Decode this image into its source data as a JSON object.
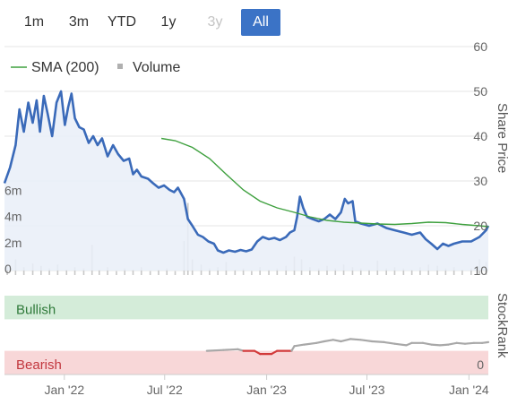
{
  "range_selector": {
    "buttons": [
      {
        "label": "1m",
        "state": "normal"
      },
      {
        "label": "3m",
        "state": "normal"
      },
      {
        "label": "YTD",
        "state": "normal"
      },
      {
        "label": "1y",
        "state": "normal"
      },
      {
        "label": "3y",
        "state": "disabled"
      },
      {
        "label": "All",
        "state": "active"
      }
    ]
  },
  "legend": {
    "sma_label": "SMA (200)",
    "volume_label": "Volume"
  },
  "colors": {
    "price": "#3a6ab9",
    "sma": "#3ea03e",
    "volume": "#c8c8c8",
    "area_fill": "#e9eef8",
    "bullish_band": "#d4ecd9",
    "bearish_band": "#f8d7d8",
    "bullish_text": "#2f7a3a",
    "bearish_text": "#c2373e",
    "stockrank_line": "#a8a8a8",
    "stockrank_bear": "#d23a3a",
    "active_button": "#3b73c6"
  },
  "chart_data": [
    {
      "type": "line",
      "ylabel": "Share Price",
      "right_ticks": [
        "60",
        "50",
        "40",
        "30",
        "20",
        "10"
      ],
      "ylim": [
        10,
        60
      ],
      "left_volume_ticks": [
        "6m",
        "4m",
        "2m",
        "0"
      ],
      "volume_ylim": [
        0,
        8
      ],
      "xlim": [
        "2021-09-15",
        "2024-02-05"
      ],
      "x_ticks": [
        {
          "label": "Jan '22",
          "date": "2022-01-01"
        },
        {
          "label": "Jul '22",
          "date": "2022-07-01"
        },
        {
          "label": "Jan '23",
          "date": "2023-01-01"
        },
        {
          "label": "Jul '23",
          "date": "2023-07-01"
        },
        {
          "label": "Jan '24",
          "date": "2024-01-01"
        }
      ],
      "price_series": {
        "name": "Share Price",
        "points": [
          [
            "2021-09-15",
            29.5
          ],
          [
            "2021-09-25",
            33.0
          ],
          [
            "2021-10-05",
            38.0
          ],
          [
            "2021-10-12",
            46.0
          ],
          [
            "2021-10-20",
            41.0
          ],
          [
            "2021-10-28",
            47.5
          ],
          [
            "2021-11-05",
            43.0
          ],
          [
            "2021-11-12",
            48.0
          ],
          [
            "2021-11-18",
            41.0
          ],
          [
            "2021-11-25",
            49.0
          ],
          [
            "2021-12-02",
            45.0
          ],
          [
            "2021-12-10",
            40.0
          ],
          [
            "2021-12-18",
            47.5
          ],
          [
            "2021-12-26",
            50.0
          ],
          [
            "2022-01-02",
            42.5
          ],
          [
            "2022-01-08",
            46.5
          ],
          [
            "2022-01-14",
            49.5
          ],
          [
            "2022-01-20",
            44.0
          ],
          [
            "2022-01-28",
            42.0
          ],
          [
            "2022-02-05",
            41.5
          ],
          [
            "2022-02-14",
            38.5
          ],
          [
            "2022-02-22",
            40.0
          ],
          [
            "2022-03-02",
            38.0
          ],
          [
            "2022-03-10",
            39.5
          ],
          [
            "2022-03-20",
            35.5
          ],
          [
            "2022-03-30",
            38.0
          ],
          [
            "2022-04-08",
            36.0
          ],
          [
            "2022-04-18",
            34.5
          ],
          [
            "2022-04-28",
            35.0
          ],
          [
            "2022-05-05",
            31.5
          ],
          [
            "2022-05-12",
            32.5
          ],
          [
            "2022-05-20",
            31.0
          ],
          [
            "2022-06-01",
            30.5
          ],
          [
            "2022-06-10",
            29.5
          ],
          [
            "2022-06-20",
            28.5
          ],
          [
            "2022-06-30",
            29.0
          ],
          [
            "2022-07-10",
            28.0
          ],
          [
            "2022-07-18",
            27.5
          ],
          [
            "2022-07-25",
            28.5
          ],
          [
            "2022-08-05",
            26.0
          ],
          [
            "2022-08-12",
            21.5
          ],
          [
            "2022-08-20",
            20.0
          ],
          [
            "2022-08-30",
            18.0
          ],
          [
            "2022-09-08",
            17.5
          ],
          [
            "2022-09-18",
            16.5
          ],
          [
            "2022-09-28",
            16.0
          ],
          [
            "2022-10-05",
            14.5
          ],
          [
            "2022-10-15",
            14.0
          ],
          [
            "2022-10-25",
            14.5
          ],
          [
            "2022-11-05",
            14.2
          ],
          [
            "2022-11-15",
            14.6
          ],
          [
            "2022-11-25",
            14.3
          ],
          [
            "2022-12-05",
            14.7
          ],
          [
            "2022-12-15",
            16.5
          ],
          [
            "2022-12-25",
            17.5
          ],
          [
            "2023-01-05",
            17.0
          ],
          [
            "2023-01-15",
            17.3
          ],
          [
            "2023-01-25",
            16.8
          ],
          [
            "2023-02-05",
            17.5
          ],
          [
            "2023-02-12",
            18.5
          ],
          [
            "2023-02-20",
            19.0
          ],
          [
            "2023-02-25",
            22.0
          ],
          [
            "2023-03-02",
            26.5
          ],
          [
            "2023-03-08",
            24.0
          ],
          [
            "2023-03-15",
            22.0
          ],
          [
            "2023-03-25",
            21.5
          ],
          [
            "2023-04-05",
            21.0
          ],
          [
            "2023-04-15",
            21.5
          ],
          [
            "2023-04-25",
            22.5
          ],
          [
            "2023-05-05",
            21.5
          ],
          [
            "2023-05-15",
            23.0
          ],
          [
            "2023-05-22",
            26.0
          ],
          [
            "2023-05-28",
            25.0
          ],
          [
            "2023-06-05",
            25.5
          ],
          [
            "2023-06-10",
            21.0
          ],
          [
            "2023-06-20",
            20.5
          ],
          [
            "2023-07-05",
            20.0
          ],
          [
            "2023-07-20",
            20.5
          ],
          [
            "2023-08-05",
            19.5
          ],
          [
            "2023-08-20",
            19.0
          ],
          [
            "2023-09-05",
            18.5
          ],
          [
            "2023-09-20",
            18.0
          ],
          [
            "2023-10-05",
            18.5
          ],
          [
            "2023-10-15",
            17.0
          ],
          [
            "2023-10-25",
            16.0
          ],
          [
            "2023-11-05",
            14.8
          ],
          [
            "2023-11-15",
            16.0
          ],
          [
            "2023-11-25",
            15.5
          ],
          [
            "2023-12-05",
            16.0
          ],
          [
            "2023-12-20",
            16.5
          ],
          [
            "2024-01-05",
            16.5
          ],
          [
            "2024-01-20",
            17.5
          ],
          [
            "2024-02-01",
            19.0
          ],
          [
            "2024-02-05",
            20.0
          ]
        ]
      },
      "sma_series": {
        "name": "SMA (200)",
        "points": [
          [
            "2022-06-25",
            39.5
          ],
          [
            "2022-07-20",
            39.0
          ],
          [
            "2022-08-20",
            37.5
          ],
          [
            "2022-09-20",
            35.0
          ],
          [
            "2022-10-20",
            31.5
          ],
          [
            "2022-11-20",
            28.0
          ],
          [
            "2022-12-20",
            25.5
          ],
          [
            "2023-01-20",
            24.0
          ],
          [
            "2023-02-20",
            23.0
          ],
          [
            "2023-03-20",
            22.0
          ],
          [
            "2023-04-20",
            21.2
          ],
          [
            "2023-05-20",
            20.8
          ],
          [
            "2023-06-20",
            20.6
          ],
          [
            "2023-07-20",
            20.4
          ],
          [
            "2023-08-20",
            20.3
          ],
          [
            "2023-09-20",
            20.5
          ],
          [
            "2023-10-20",
            20.8
          ],
          [
            "2023-11-20",
            20.7
          ],
          [
            "2023-12-20",
            20.3
          ],
          [
            "2024-01-20",
            20.0
          ],
          [
            "2024-02-05",
            19.8
          ]
        ]
      },
      "volume_series": {
        "name": "Volume",
        "points": [
          [
            "2021-09-20",
            0.8
          ],
          [
            "2021-10-05",
            1.2
          ],
          [
            "2021-10-20",
            0.6
          ],
          [
            "2021-11-05",
            0.9
          ],
          [
            "2021-11-20",
            0.7
          ],
          [
            "2021-12-05",
            0.5
          ],
          [
            "2021-12-20",
            0.8
          ],
          [
            "2022-01-05",
            0.4
          ],
          [
            "2022-01-20",
            0.6
          ],
          [
            "2022-02-05",
            0.5
          ],
          [
            "2022-02-20",
            2.3
          ],
          [
            "2022-03-05",
            0.4
          ],
          [
            "2022-03-20",
            0.6
          ],
          [
            "2022-04-05",
            0.3
          ],
          [
            "2022-04-20",
            0.5
          ],
          [
            "2022-05-05",
            0.4
          ],
          [
            "2022-05-20",
            0.6
          ],
          [
            "2022-06-05",
            0.3
          ],
          [
            "2022-06-20",
            0.4
          ],
          [
            "2022-07-05",
            0.5
          ],
          [
            "2022-07-20",
            0.3
          ],
          [
            "2022-08-05",
            2.6
          ],
          [
            "2022-08-12",
            5.5
          ],
          [
            "2022-08-20",
            1.2
          ],
          [
            "2022-09-05",
            0.8
          ],
          [
            "2022-09-20",
            0.5
          ],
          [
            "2022-10-05",
            0.6
          ],
          [
            "2022-10-20",
            1.0
          ],
          [
            "2022-11-05",
            0.4
          ],
          [
            "2022-11-20",
            0.5
          ],
          [
            "2022-12-05",
            0.3
          ],
          [
            "2022-12-20",
            0.6
          ],
          [
            "2023-01-05",
            0.4
          ],
          [
            "2023-01-20",
            0.5
          ],
          [
            "2023-02-05",
            0.7
          ],
          [
            "2023-02-20",
            1.4
          ],
          [
            "2023-03-05",
            1.2
          ],
          [
            "2023-03-20",
            0.6
          ],
          [
            "2023-04-05",
            0.5
          ],
          [
            "2023-04-20",
            0.7
          ],
          [
            "2023-05-05",
            0.5
          ],
          [
            "2023-05-20",
            0.8
          ],
          [
            "2023-06-05",
            0.6
          ],
          [
            "2023-06-20",
            0.5
          ],
          [
            "2023-07-05",
            0.4
          ],
          [
            "2023-07-20",
            1.1
          ],
          [
            "2023-08-05",
            0.5
          ],
          [
            "2023-08-20",
            0.6
          ],
          [
            "2023-09-05",
            0.5
          ],
          [
            "2023-09-20",
            0.4
          ],
          [
            "2023-10-05",
            0.6
          ],
          [
            "2023-10-20",
            0.8
          ],
          [
            "2023-11-05",
            0.7
          ],
          [
            "2023-11-20",
            0.5
          ],
          [
            "2023-12-05",
            0.6
          ],
          [
            "2023-12-20",
            0.4
          ],
          [
            "2024-01-05",
            0.5
          ],
          [
            "2024-01-20",
            1.2
          ],
          [
            "2024-02-01",
            1.0
          ]
        ]
      }
    },
    {
      "type": "line",
      "ylabel": "StockRank",
      "ytick": "0",
      "ylim": [
        0,
        100
      ],
      "bands": [
        {
          "label": "Bullish",
          "from": 70,
          "to": 100
        },
        {
          "label": "Bearish",
          "from": 0,
          "to": 30
        }
      ],
      "series": [
        {
          "points": [
            [
              "2022-09-15",
              30
            ],
            [
              "2022-10-15",
              31
            ],
            [
              "2022-11-10",
              32
            ],
            [
              "2022-11-20",
              30
            ],
            [
              "2022-12-10",
              30
            ],
            [
              "2022-12-20",
              26
            ],
            [
              "2023-01-10",
              26
            ],
            [
              "2023-01-20",
              30
            ],
            [
              "2023-02-15",
              30
            ],
            [
              "2023-02-20",
              36
            ],
            [
              "2023-03-10",
              38
            ],
            [
              "2023-04-01",
              40
            ],
            [
              "2023-04-15",
              42
            ],
            [
              "2023-05-01",
              44
            ],
            [
              "2023-05-15",
              42
            ],
            [
              "2023-06-01",
              45
            ],
            [
              "2023-06-20",
              44
            ],
            [
              "2023-07-10",
              42
            ],
            [
              "2023-08-01",
              41
            ],
            [
              "2023-08-20",
              39
            ],
            [
              "2023-09-10",
              37
            ],
            [
              "2023-09-20",
              40
            ],
            [
              "2023-10-10",
              40
            ],
            [
              "2023-10-25",
              38
            ],
            [
              "2023-11-10",
              37
            ],
            [
              "2023-11-25",
              38
            ],
            [
              "2023-12-10",
              40
            ],
            [
              "2023-12-25",
              39
            ],
            [
              "2024-01-10",
              40
            ],
            [
              "2024-01-25",
              40
            ],
            [
              "2024-02-05",
              41
            ]
          ],
          "bearish_below": 30
        }
      ]
    }
  ]
}
